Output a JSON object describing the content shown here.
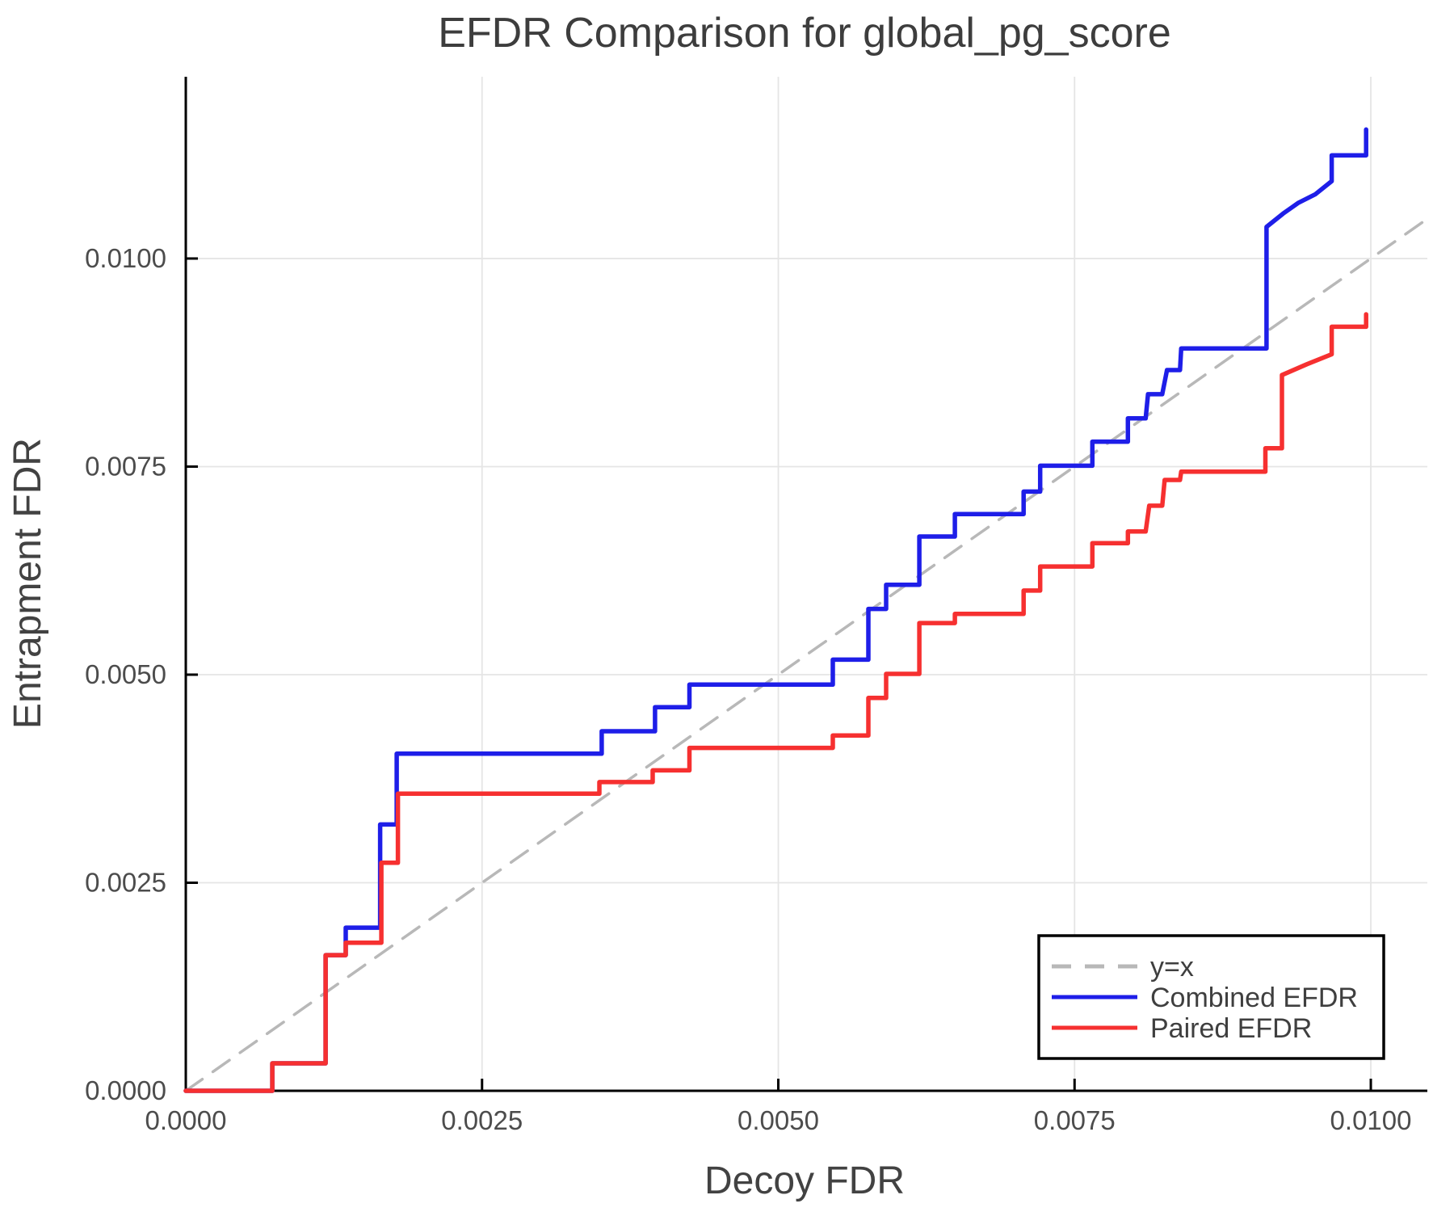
{
  "chart_data": {
    "type": "line",
    "title": "EFDR Comparison for global_pg_score",
    "xlabel": "Decoy FDR",
    "ylabel": "Entrapment FDR",
    "xlim": [
      0,
      0.010477
    ],
    "ylim": [
      0,
      0.012184
    ],
    "grid": true,
    "x_ticks": {
      "values": [
        0.0,
        0.0025,
        0.005,
        0.0075,
        0.01
      ],
      "labels": [
        "0.0000",
        "0.0025",
        "0.0050",
        "0.0075",
        "0.0100"
      ]
    },
    "y_ticks": {
      "values": [
        0.0,
        0.0025,
        0.005,
        0.0075,
        0.01
      ],
      "labels": [
        "0.0000",
        "0.0025",
        "0.0050",
        "0.0075",
        "0.0100"
      ]
    },
    "legend": {
      "position": "lower right",
      "entries": [
        {
          "key": "identity",
          "label": "y=x",
          "color": "#b8b8b8",
          "dashed": true
        },
        {
          "key": "combined-efdr",
          "label": "Combined EFDR",
          "color": "#1e1ee8",
          "dashed": false
        },
        {
          "key": "paired-efdr",
          "label": "Paired EFDR",
          "color": "#f63030",
          "dashed": false
        }
      ]
    },
    "series": [
      {
        "key": "identity",
        "name": "y=x",
        "color": "#b8b8b8",
        "dashed": true,
        "width": 3.5,
        "points": [
          [
            0,
            0
          ],
          [
            0.010477,
            0.010477
          ]
        ]
      },
      {
        "key": "combined-efdr",
        "name": "Combined EFDR",
        "color": "#1e1ee8",
        "dashed": false,
        "width": 5.5,
        "points": [
          [
            0.0,
            0.0
          ],
          [
            0.00073,
            0.0
          ],
          [
            0.00073,
            0.00033
          ],
          [
            0.00118,
            0.00033
          ],
          [
            0.00118,
            0.00163
          ],
          [
            0.00135,
            0.00163
          ],
          [
            0.00135,
            0.00196
          ],
          [
            0.00164,
            0.00196
          ],
          [
            0.00164,
            0.0032
          ],
          [
            0.00178,
            0.0032
          ],
          [
            0.00178,
            0.00405
          ],
          [
            0.00351,
            0.00405
          ],
          [
            0.00351,
            0.00432
          ],
          [
            0.00396,
            0.00432
          ],
          [
            0.00396,
            0.00461
          ],
          [
            0.00425,
            0.00461
          ],
          [
            0.00425,
            0.00488
          ],
          [
            0.00546,
            0.00488
          ],
          [
            0.00546,
            0.00518
          ],
          [
            0.00576,
            0.00518
          ],
          [
            0.00576,
            0.00579
          ],
          [
            0.00591,
            0.00579
          ],
          [
            0.00591,
            0.00608
          ],
          [
            0.00619,
            0.00608
          ],
          [
            0.00619,
            0.00666
          ],
          [
            0.00649,
            0.00666
          ],
          [
            0.00649,
            0.00693
          ],
          [
            0.00707,
            0.00693
          ],
          [
            0.00707,
            0.0072
          ],
          [
            0.00721,
            0.0072
          ],
          [
            0.00721,
            0.00751
          ],
          [
            0.00765,
            0.00751
          ],
          [
            0.00765,
            0.0078
          ],
          [
            0.00795,
            0.0078
          ],
          [
            0.00795,
            0.00808
          ],
          [
            0.0081,
            0.00808
          ],
          [
            0.00812,
            0.00837
          ],
          [
            0.00824,
            0.00837
          ],
          [
            0.00828,
            0.00866
          ],
          [
            0.00839,
            0.00866
          ],
          [
            0.0084,
            0.00892
          ],
          [
            0.00912,
            0.00892
          ],
          [
            0.00912,
            0.01038
          ],
          [
            0.00926,
            0.01054
          ],
          [
            0.00939,
            0.01067
          ],
          [
            0.00953,
            0.01077
          ],
          [
            0.00967,
            0.01093
          ],
          [
            0.00967,
            0.01124
          ],
          [
            0.00996,
            0.01124
          ],
          [
            0.00996,
            0.01155
          ]
        ]
      },
      {
        "key": "paired-efdr",
        "name": "Paired EFDR",
        "color": "#f63030",
        "dashed": false,
        "width": 5.5,
        "points": [
          [
            0.0,
            0.0
          ],
          [
            0.00073,
            0.0
          ],
          [
            0.00073,
            0.00033
          ],
          [
            0.00118,
            0.00033
          ],
          [
            0.00118,
            0.00163
          ],
          [
            0.00135,
            0.00163
          ],
          [
            0.00135,
            0.00178
          ],
          [
            0.00165,
            0.00178
          ],
          [
            0.00165,
            0.00274
          ],
          [
            0.00179,
            0.00274
          ],
          [
            0.00179,
            0.00357
          ],
          [
            0.00349,
            0.00357
          ],
          [
            0.00349,
            0.00371
          ],
          [
            0.00394,
            0.00371
          ],
          [
            0.00394,
            0.00385
          ],
          [
            0.00425,
            0.00385
          ],
          [
            0.00425,
            0.00412
          ],
          [
            0.00546,
            0.00412
          ],
          [
            0.00546,
            0.00427
          ],
          [
            0.00576,
            0.00427
          ],
          [
            0.00576,
            0.00472
          ],
          [
            0.00591,
            0.00472
          ],
          [
            0.00591,
            0.00501
          ],
          [
            0.00619,
            0.00501
          ],
          [
            0.00619,
            0.00562
          ],
          [
            0.00649,
            0.00562
          ],
          [
            0.00649,
            0.00573
          ],
          [
            0.00707,
            0.00573
          ],
          [
            0.00707,
            0.00601
          ],
          [
            0.00721,
            0.00601
          ],
          [
            0.00721,
            0.0063
          ],
          [
            0.00765,
            0.0063
          ],
          [
            0.00765,
            0.00658
          ],
          [
            0.00795,
            0.00658
          ],
          [
            0.00795,
            0.00672
          ],
          [
            0.0081,
            0.00672
          ],
          [
            0.00813,
            0.00703
          ],
          [
            0.00824,
            0.00703
          ],
          [
            0.00826,
            0.00734
          ],
          [
            0.00839,
            0.00734
          ],
          [
            0.0084,
            0.00744
          ],
          [
            0.00911,
            0.00744
          ],
          [
            0.00911,
            0.00772
          ],
          [
            0.00925,
            0.00772
          ],
          [
            0.00925,
            0.0086
          ],
          [
            0.00946,
            0.00873
          ],
          [
            0.00967,
            0.00885
          ],
          [
            0.00967,
            0.00918
          ],
          [
            0.00996,
            0.00918
          ],
          [
            0.00996,
            0.00933
          ]
        ]
      }
    ],
    "style": {
      "grid_color": "#e5e5e5",
      "spine_color": "#000000",
      "tick_color": "#000000",
      "legend_border_color": "#000000",
      "legend_bg_color": "#ffffff",
      "text_color": "#3f3f3f"
    }
  }
}
